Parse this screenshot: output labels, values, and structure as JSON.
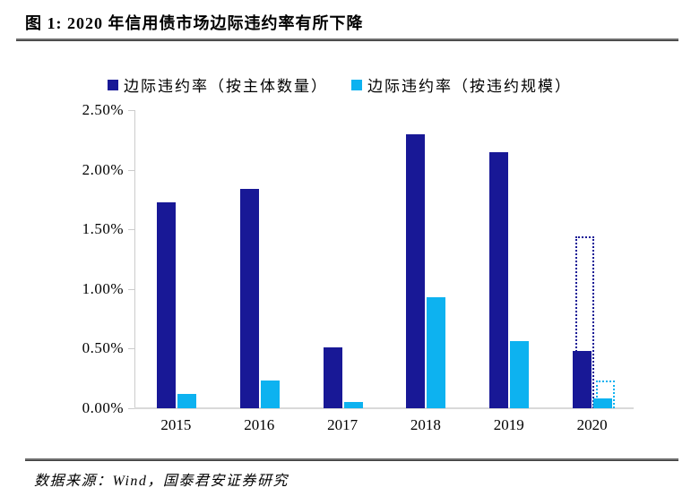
{
  "figure": {
    "title": "图 1:  2020 年信用债市场边际违约率有所下降",
    "source": "数据来源：Wind，国泰君安证券研究"
  },
  "chart_data": {
    "type": "bar",
    "title": "2020 年信用债市场边际违约率有所下降",
    "categories": [
      "2015",
      "2016",
      "2017",
      "2018",
      "2019",
      "2020"
    ],
    "series": [
      {
        "name": "边际违约率（按主体数量）",
        "key": "by-entity-count",
        "color": "#181896",
        "values": [
          1.73,
          1.84,
          0.51,
          2.3,
          2.15,
          0.48
        ]
      },
      {
        "name": "边际违约率（按违约规模）",
        "key": "by-default-size",
        "color": "#0DB2F0",
        "values": [
          0.12,
          0.23,
          0.05,
          0.93,
          0.56,
          0.08
        ]
      }
    ],
    "dashed_overlays": [
      {
        "series_index": 0,
        "category": "2020",
        "value": 1.44,
        "style": "dotted-outline"
      },
      {
        "series_index": 1,
        "category": "2020",
        "value": 0.23,
        "style": "dotted-outline"
      }
    ],
    "xlabel": "",
    "ylabel": "",
    "ylim": [
      0,
      2.5
    ],
    "yticks": [
      "2.50%",
      "2.00%",
      "1.50%",
      "1.00%",
      "0.50%",
      "0.00%"
    ],
    "grid": false,
    "legend_position": "top"
  }
}
